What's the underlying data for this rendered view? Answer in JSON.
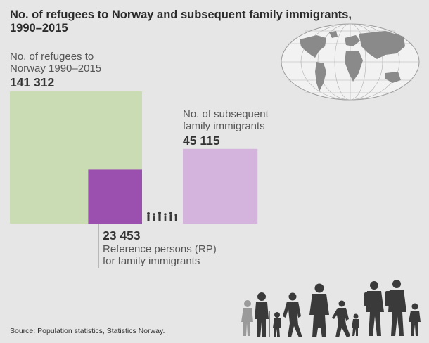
{
  "title": "No. of refugees to Norway and subsequent family immigrants, 1990–2015",
  "source": "Source: Population statistics, Statistics Norway.",
  "colors": {
    "refugees": "#c9dcb4",
    "reference_persons": "#9b4fae",
    "family_immigrants": "#d4b4dc",
    "background": "#e6e6e6",
    "silhouette": "#3a3a3a"
  },
  "icons": [
    "world-map-globe-icon",
    "walking-family-silhouette-icon",
    "small-people-group-icon"
  ],
  "chart_data": {
    "type": "area-proportional squares",
    "items": [
      {
        "label_line1": "No. of refugees to",
        "label_line2": "Norway 1990–2015",
        "value": 141312,
        "value_text": "141 312"
      },
      {
        "label_line1": "Reference persons (RP)",
        "label_line2": "for family immigrants",
        "value": 23453,
        "value_text": "23 453"
      },
      {
        "label_line1": "No. of subsequent",
        "label_line2": "family immigrants",
        "value": 45115,
        "value_text": "45 115"
      }
    ]
  }
}
